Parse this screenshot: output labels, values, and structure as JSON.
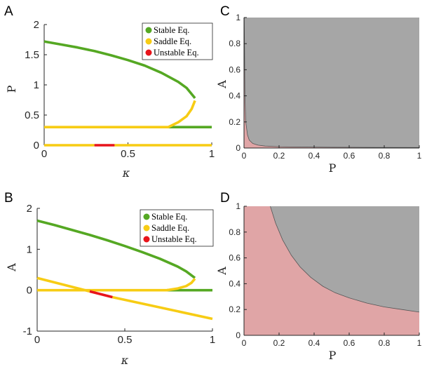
{
  "colors": {
    "stable": "#55a823",
    "saddle": "#f7cc14",
    "unstable": "#e8141b",
    "basin_red": "#e0a5a6",
    "basin_gray": "#a6a6a6"
  },
  "chart_data": [
    {
      "panel": "A",
      "type": "line",
      "xlabel": "κ",
      "ylabel": "P",
      "xlim": [
        0,
        1
      ],
      "ylim": [
        0,
        2
      ],
      "xticks": [
        "0",
        "0.5",
        "1"
      ],
      "yticks": [
        "0",
        "0.5",
        "1",
        "1.5",
        "2"
      ],
      "legend": {
        "placement": "top-right",
        "entries": [
          "Stable Eq.",
          "Saddle Eq.",
          "Unstable Eq."
        ]
      },
      "series": [
        {
          "name": "Stable Eq.",
          "x": [
            0,
            0.1,
            0.2,
            0.3,
            0.4,
            0.5,
            0.6,
            0.7,
            0.8,
            0.85,
            0.9
          ],
          "y": [
            1.72,
            1.67,
            1.62,
            1.56,
            1.49,
            1.41,
            1.32,
            1.2,
            1.05,
            0.95,
            0.78
          ]
        },
        {
          "name": "Stable Eq.",
          "x": [
            0.74,
            1.0
          ],
          "y": [
            0.3,
            0.3
          ]
        },
        {
          "name": "Saddle Eq.",
          "x": [
            0,
            0.74,
            0.8,
            0.85,
            0.88,
            0.9
          ],
          "y": [
            0.3,
            0.3,
            0.38,
            0.48,
            0.6,
            0.74
          ]
        },
        {
          "name": "Saddle Eq.",
          "x": [
            0,
            0.3
          ],
          "y": [
            0,
            0
          ]
        },
        {
          "name": "Unstable Eq.",
          "x": [
            0.3,
            0.42
          ],
          "y": [
            0,
            0
          ]
        },
        {
          "name": "Saddle Eq.",
          "x": [
            0.42,
            1.0
          ],
          "y": [
            0,
            0
          ]
        }
      ]
    },
    {
      "panel": "B",
      "type": "line",
      "xlabel": "κ",
      "ylabel": "A",
      "xlim": [
        0,
        1
      ],
      "ylim": [
        -1,
        2
      ],
      "xticks": [
        "0",
        "0.5",
        "1"
      ],
      "yticks": [
        "-1",
        "0",
        "1",
        "2"
      ],
      "legend": {
        "placement": "top-right",
        "entries": [
          "Stable Eq.",
          "Saddle Eq.",
          "Unstable Eq."
        ]
      },
      "series": [
        {
          "name": "Stable Eq.",
          "x": [
            0,
            0.1,
            0.2,
            0.3,
            0.4,
            0.5,
            0.6,
            0.7,
            0.8,
            0.85,
            0.9
          ],
          "y": [
            1.7,
            1.59,
            1.47,
            1.35,
            1.22,
            1.08,
            0.93,
            0.77,
            0.58,
            0.46,
            0.3
          ]
        },
        {
          "name": "Stable Eq.",
          "x": [
            0.74,
            1.0
          ],
          "y": [
            0,
            0
          ]
        },
        {
          "name": "Saddle Eq.",
          "x": [
            0,
            0.74,
            0.8,
            0.85,
            0.88,
            0.9
          ],
          "y": [
            0,
            0,
            0.04,
            0.1,
            0.18,
            0.28
          ]
        },
        {
          "name": "Saddle Eq.",
          "x": [
            0,
            0.3
          ],
          "y": [
            0.3,
            -0.03
          ]
        },
        {
          "name": "Unstable Eq.",
          "x": [
            0.3,
            0.43
          ],
          "y": [
            -0.03,
            -0.17
          ]
        },
        {
          "name": "Saddle Eq.",
          "x": [
            0.43,
            1.0
          ],
          "y": [
            -0.17,
            -0.7
          ]
        }
      ]
    },
    {
      "panel": "C",
      "type": "area",
      "xlabel": "P",
      "ylabel": "A",
      "xlim": [
        0,
        1
      ],
      "ylim": [
        0,
        1
      ],
      "xticks": [
        "0",
        "0.2",
        "0.4",
        "0.6",
        "0.8",
        "1"
      ],
      "yticks": [
        "0",
        "0.2",
        "0.4",
        "0.6",
        "0.8",
        "1"
      ],
      "boundary": {
        "x": [
          0.001,
          0.003,
          0.005,
          0.01,
          0.02,
          0.03,
          0.05,
          0.08,
          0.12,
          0.2,
          0.3,
          0.5,
          0.75,
          1.0
        ],
        "y": [
          1.0,
          0.75,
          0.4,
          0.2,
          0.1,
          0.06,
          0.035,
          0.022,
          0.015,
          0.01,
          0.008,
          0.006,
          0.005,
          0.004
        ]
      }
    },
    {
      "panel": "D",
      "type": "area",
      "xlabel": "P",
      "ylabel": "A",
      "xlim": [
        0,
        1
      ],
      "ylim": [
        0,
        1
      ],
      "xticks": [
        "0",
        "0.2",
        "0.4",
        "0.6",
        "0.8",
        "1"
      ],
      "yticks": [
        "0",
        "0.2",
        "0.4",
        "0.6",
        "0.8",
        "1"
      ],
      "boundary": {
        "x": [
          0.15,
          0.18,
          0.22,
          0.27,
          0.32,
          0.38,
          0.45,
          0.52,
          0.6,
          0.7,
          0.8,
          0.9,
          1.0
        ],
        "y": [
          1.0,
          0.87,
          0.74,
          0.62,
          0.53,
          0.45,
          0.38,
          0.33,
          0.29,
          0.25,
          0.22,
          0.2,
          0.18
        ]
      }
    }
  ]
}
